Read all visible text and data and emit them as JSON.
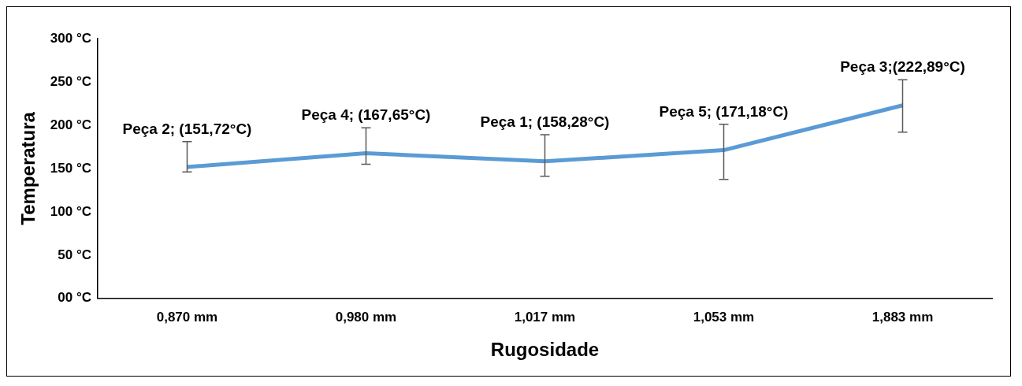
{
  "chart_data": {
    "type": "line",
    "xlabel": "Rugosidade",
    "ylabel": "Temperatura",
    "categories": [
      "0,870 mm",
      "0,980 mm",
      "1,017 mm",
      "1,053 mm",
      "1,883 mm"
    ],
    "series": [
      {
        "color": "#5b9bd5",
        "values": [
          151.72,
          167.65,
          158.28,
          171.18,
          222.89
        ],
        "errors": [
          [
            146,
            181
          ],
          [
            155,
            197
          ],
          [
            141,
            189
          ],
          [
            137.5,
            201
          ],
          [
            192,
            252.5
          ]
        ],
        "value_labels": [
          "Peça 2; (151,72°C)",
          "Peça 4; (167,65°C)",
          "Peça 1; (158,28°C)",
          "Peça 5; (171,18°C)",
          "Peça 3;(222,89°C)"
        ]
      }
    ],
    "ylim": [
      0,
      300
    ],
    "yticks": [
      {
        "value": 0,
        "label": "00 °C"
      },
      {
        "value": 50,
        "label": "50 °C"
      },
      {
        "value": 100,
        "label": "100 °C"
      },
      {
        "value": 150,
        "label": "150 °C"
      },
      {
        "value": 200,
        "label": "200 °C"
      },
      {
        "value": 250,
        "label": "250 °C"
      },
      {
        "value": 300,
        "label": "300 °C"
      }
    ],
    "grid": false,
    "legend": false,
    "marker": "none",
    "line_style": "solid"
  }
}
